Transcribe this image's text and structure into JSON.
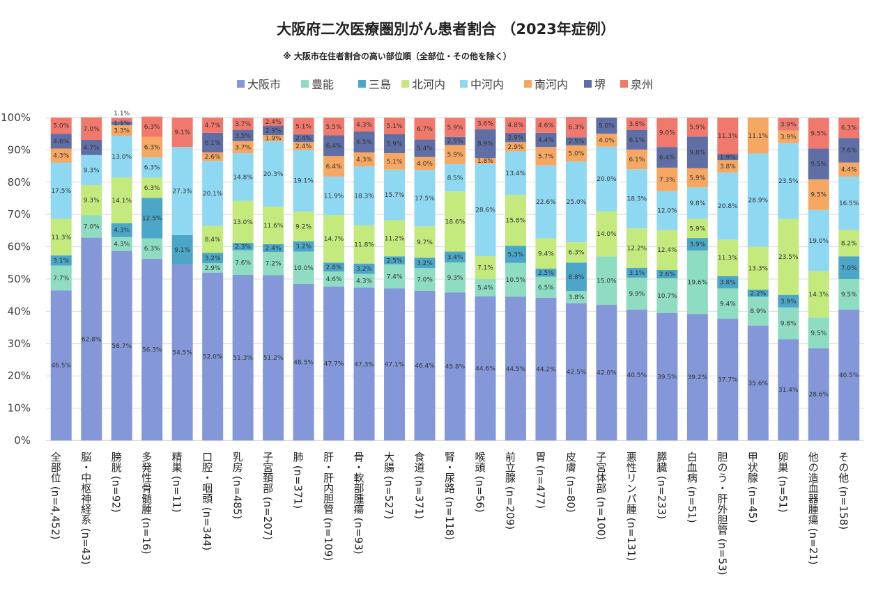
{
  "chart_data": {
    "type": "bar",
    "stacked": true,
    "title": "大阪府二次医療圏別がん患者割合 （2023年症例）",
    "subtitle": "※ 大阪市在住者割合の高い部位順（全部位・その他を除く）",
    "ylim": [
      0,
      100
    ],
    "yticks": [
      "0%",
      "10%",
      "20%",
      "30%",
      "40%",
      "50%",
      "60%",
      "70%",
      "80%",
      "90%",
      "100%"
    ],
    "legend_position": "top",
    "categories": [
      "全部位 (n=4,452)",
      "脳・中枢神経系 (n=43)",
      "膀胱 (n=92)",
      "多発性骨髄腫 (n=16)",
      "精巣 (n=11)",
      "口腔・咽頭 (n=344)",
      "乳房 (n=485)",
      "子宮頚部 (n=207)",
      "肺 (n=371)",
      "肝・肝内胆管 (n=109)",
      "骨・軟部腫瘍 (n=93)",
      "大腸 (n=527)",
      "食道 (n=371)",
      "腎・尿路 (n=118)",
      "喉頭 (n=56)",
      "前立腺 (n=209)",
      "胃 (n=477)",
      "皮膚 (n=80)",
      "子宮体部 (n=100)",
      "悪性リンパ腫 (n=131)",
      "膵臓 (n=233)",
      "白血病 (n=51)",
      "胆のう・肝外胆管 (n=53)",
      "甲状腺 (n=45)",
      "卵巣 (n=51)",
      "他の造血器腫瘍 (n=21)",
      "その他 (n=158)"
    ],
    "series": [
      {
        "name": "大阪市",
        "color": "#8497d8",
        "values": [
          46.5,
          62.8,
          58.7,
          56.3,
          54.5,
          52.0,
          51.3,
          51.2,
          48.5,
          47.7,
          47.3,
          47.1,
          46.4,
          45.8,
          44.6,
          44.5,
          44.2,
          42.5,
          42.0,
          40.5,
          39.5,
          39.2,
          37.7,
          35.6,
          31.4,
          28.6,
          40.5
        ],
        "labels": [
          "46.5%",
          "62.8%",
          "58.7%",
          "56.3%",
          "54.5%",
          "52.0%",
          "51.3%",
          "51.2%",
          "48.5%",
          "47.7%",
          "47.3%",
          "47.1%",
          "46.4%",
          "45.8%",
          "44.6%",
          "44.5%",
          "44.2%",
          "42.5%",
          "42.0%",
          "40.5%",
          "39.5%",
          "39.2%",
          "37.7%",
          "35.6%",
          "31.4%",
          "28.6%",
          "40.5%"
        ]
      },
      {
        "name": "豊能",
        "color": "#8edcc2",
        "values": [
          7.7,
          7.0,
          4.3,
          6.3,
          0,
          2.9,
          7.6,
          7.2,
          10.0,
          4.6,
          4.3,
          7.4,
          7.0,
          9.3,
          5.4,
          10.5,
          6.5,
          3.8,
          15.0,
          9.9,
          10.7,
          19.6,
          9.4,
          8.9,
          9.8,
          9.5,
          9.5
        ],
        "labels": [
          "7.7%",
          "7.0%",
          "4.3%",
          "6.3%",
          "",
          "2.9%",
          "7.6%",
          "7.2%",
          "10.0%",
          "4.6%",
          "4.3%",
          "7.4%",
          "7.0%",
          "9.3%",
          "5.4%",
          "10.5%",
          "6.5%",
          "3.8%",
          "15.0%",
          "9.9%",
          "10.7%",
          "19.6%",
          "9.4%",
          "8.9%",
          "9.8%",
          "9.5%",
          "9.5%"
        ]
      },
      {
        "name": "三島",
        "color": "#4ba6c8",
        "values": [
          3.1,
          0,
          4.3,
          12.5,
          9.1,
          3.2,
          2.3,
          2.4,
          3.2,
          2.8,
          3.2,
          2.5,
          3.2,
          3.4,
          0,
          5.3,
          2.5,
          8.8,
          0,
          3.1,
          2.6,
          3.9,
          3.8,
          2.2,
          3.9,
          0,
          7.0
        ],
        "labels": [
          "3.1%",
          "",
          "4.3%",
          "12.5%",
          "9.1%",
          "3.2%",
          "2.3%",
          "2.4%",
          "3.2%",
          "2.8%",
          "3.2%",
          "2.5%",
          "3.2%",
          "3.4%",
          "",
          "5.3%",
          "2.5%",
          "8.8%",
          "",
          "3.1%",
          "2.6%",
          "3.9%",
          "3.8%",
          "2.2%",
          "3.9%",
          "",
          "7.0%"
        ]
      },
      {
        "name": "北河内",
        "color": "#c4ea7e",
        "values": [
          11.3,
          9.3,
          14.1,
          6.3,
          0,
          8.4,
          13.0,
          11.6,
          9.2,
          14.7,
          11.8,
          11.2,
          9.7,
          18.6,
          7.1,
          15.8,
          9.4,
          6.3,
          14.0,
          12.2,
          12.4,
          5.9,
          11.3,
          13.3,
          23.5,
          14.3,
          8.2
        ],
        "labels": [
          "11.3%",
          "9.3%",
          "14.1%",
          "6.3%",
          "",
          "8.4%",
          "13.0%",
          "11.6%",
          "9.2%",
          "14.7%",
          "11.8%",
          "11.2%",
          "9.7%",
          "18.6%",
          "7.1%",
          "15.8%",
          "9.4%",
          "6.3%",
          "14.0%",
          "12.2%",
          "12.4%",
          "5.9%",
          "11.3%",
          "13.3%",
          "23.5%",
          "14.3%",
          "8.2%"
        ]
      },
      {
        "name": "中河内",
        "color": "#8fd8f2",
        "values": [
          17.5,
          9.3,
          13.0,
          6.3,
          27.3,
          20.1,
          14.8,
          20.3,
          19.1,
          11.9,
          18.3,
          15.7,
          17.5,
          8.5,
          28.6,
          13.4,
          22.6,
          25.0,
          20.0,
          18.3,
          12.0,
          9.8,
          20.8,
          28.9,
          23.5,
          19.0,
          16.5
        ],
        "labels": [
          "17.5%",
          "9.3%",
          "13.0%",
          "6.3%",
          "27.3%",
          "20.1%",
          "14.8%",
          "20.3%",
          "19.1%",
          "11.9%",
          "18.3%",
          "15.7%",
          "17.5%",
          "8.5%",
          "28.6%",
          "13.4%",
          "22.6%",
          "25.0%",
          "20.0%",
          "18.3%",
          "12.0%",
          "9.8%",
          "20.8%",
          "28.9%",
          "23.5%",
          "19.0%",
          "16.5%"
        ]
      },
      {
        "name": "南河内",
        "color": "#f6a862",
        "values": [
          4.3,
          0,
          3.3,
          6.3,
          0,
          2.6,
          3.7,
          1.9,
          2.4,
          6.4,
          4.3,
          5.1,
          4.0,
          5.9,
          1.8,
          2.9,
          5.7,
          5.0,
          4.0,
          6.1,
          7.3,
          5.9,
          3.8,
          11.1,
          3.9,
          9.5,
          4.4
        ],
        "labels": [
          "4.3%",
          "",
          "3.3%",
          "6.3%",
          "",
          "2.6%",
          "3.7%",
          "1.9%",
          "2.4%",
          "6.4%",
          "4.3%",
          "5.1%",
          "4.0%",
          "5.9%",
          "1.8%",
          "2.9%",
          "5.7%",
          "5.0%",
          "4.0%",
          "6.1%",
          "7.3%",
          "5.9%",
          "3.8%",
          "11.1%",
          "3.9%",
          "9.5%",
          "4.4%"
        ]
      },
      {
        "name": "堺",
        "color": "#5f6ea4",
        "values": [
          4.6,
          4.7,
          1.1,
          0,
          0,
          6.1,
          3.5,
          2.9,
          2.4,
          6.4,
          6.5,
          5.9,
          5.4,
          2.5,
          8.9,
          2.9,
          4.4,
          2.5,
          5.0,
          6.1,
          6.4,
          9.8,
          1.9,
          0,
          0,
          9.5,
          7.6
        ],
        "labels": [
          "4.6%",
          "4.7%",
          "1.1%",
          "",
          "",
          "6.1%",
          "3.5%",
          "2.9%",
          "2.4%",
          "6.4%",
          "6.5%",
          "5.9%",
          "5.4%",
          "2.5%",
          "8.9%",
          "2.9%",
          "4.4%",
          "2.5%",
          "5.0%",
          "6.1%",
          "6.4%",
          "9.8%",
          "1.9%",
          "",
          "",
          "9.5%",
          "7.6%"
        ]
      },
      {
        "name": "泉州",
        "color": "#f1786c",
        "values": [
          5.0,
          7.0,
          1.1,
          6.3,
          9.1,
          4.7,
          3.7,
          2.4,
          5.1,
          5.5,
          4.3,
          5.1,
          6.7,
          5.9,
          3.6,
          4.8,
          4.6,
          6.3,
          0,
          3.8,
          9.0,
          5.9,
          11.3,
          0,
          3.9,
          9.5,
          6.3
        ],
        "labels": [
          "5.0%",
          "7.0%",
          "1.1%",
          "6.3%",
          "9.1%",
          "4.7%",
          "3.7%",
          "2.4%",
          "5.1%",
          "5.5%",
          "4.3%",
          "5.1%",
          "6.7%",
          "5.9%",
          "3.6%",
          "4.8%",
          "4.6%",
          "6.3%",
          "",
          "3.8%",
          "9.0%",
          "5.9%",
          "11.3%",
          "",
          "3.9%",
          "9.5%",
          "6.3%"
        ]
      }
    ]
  }
}
